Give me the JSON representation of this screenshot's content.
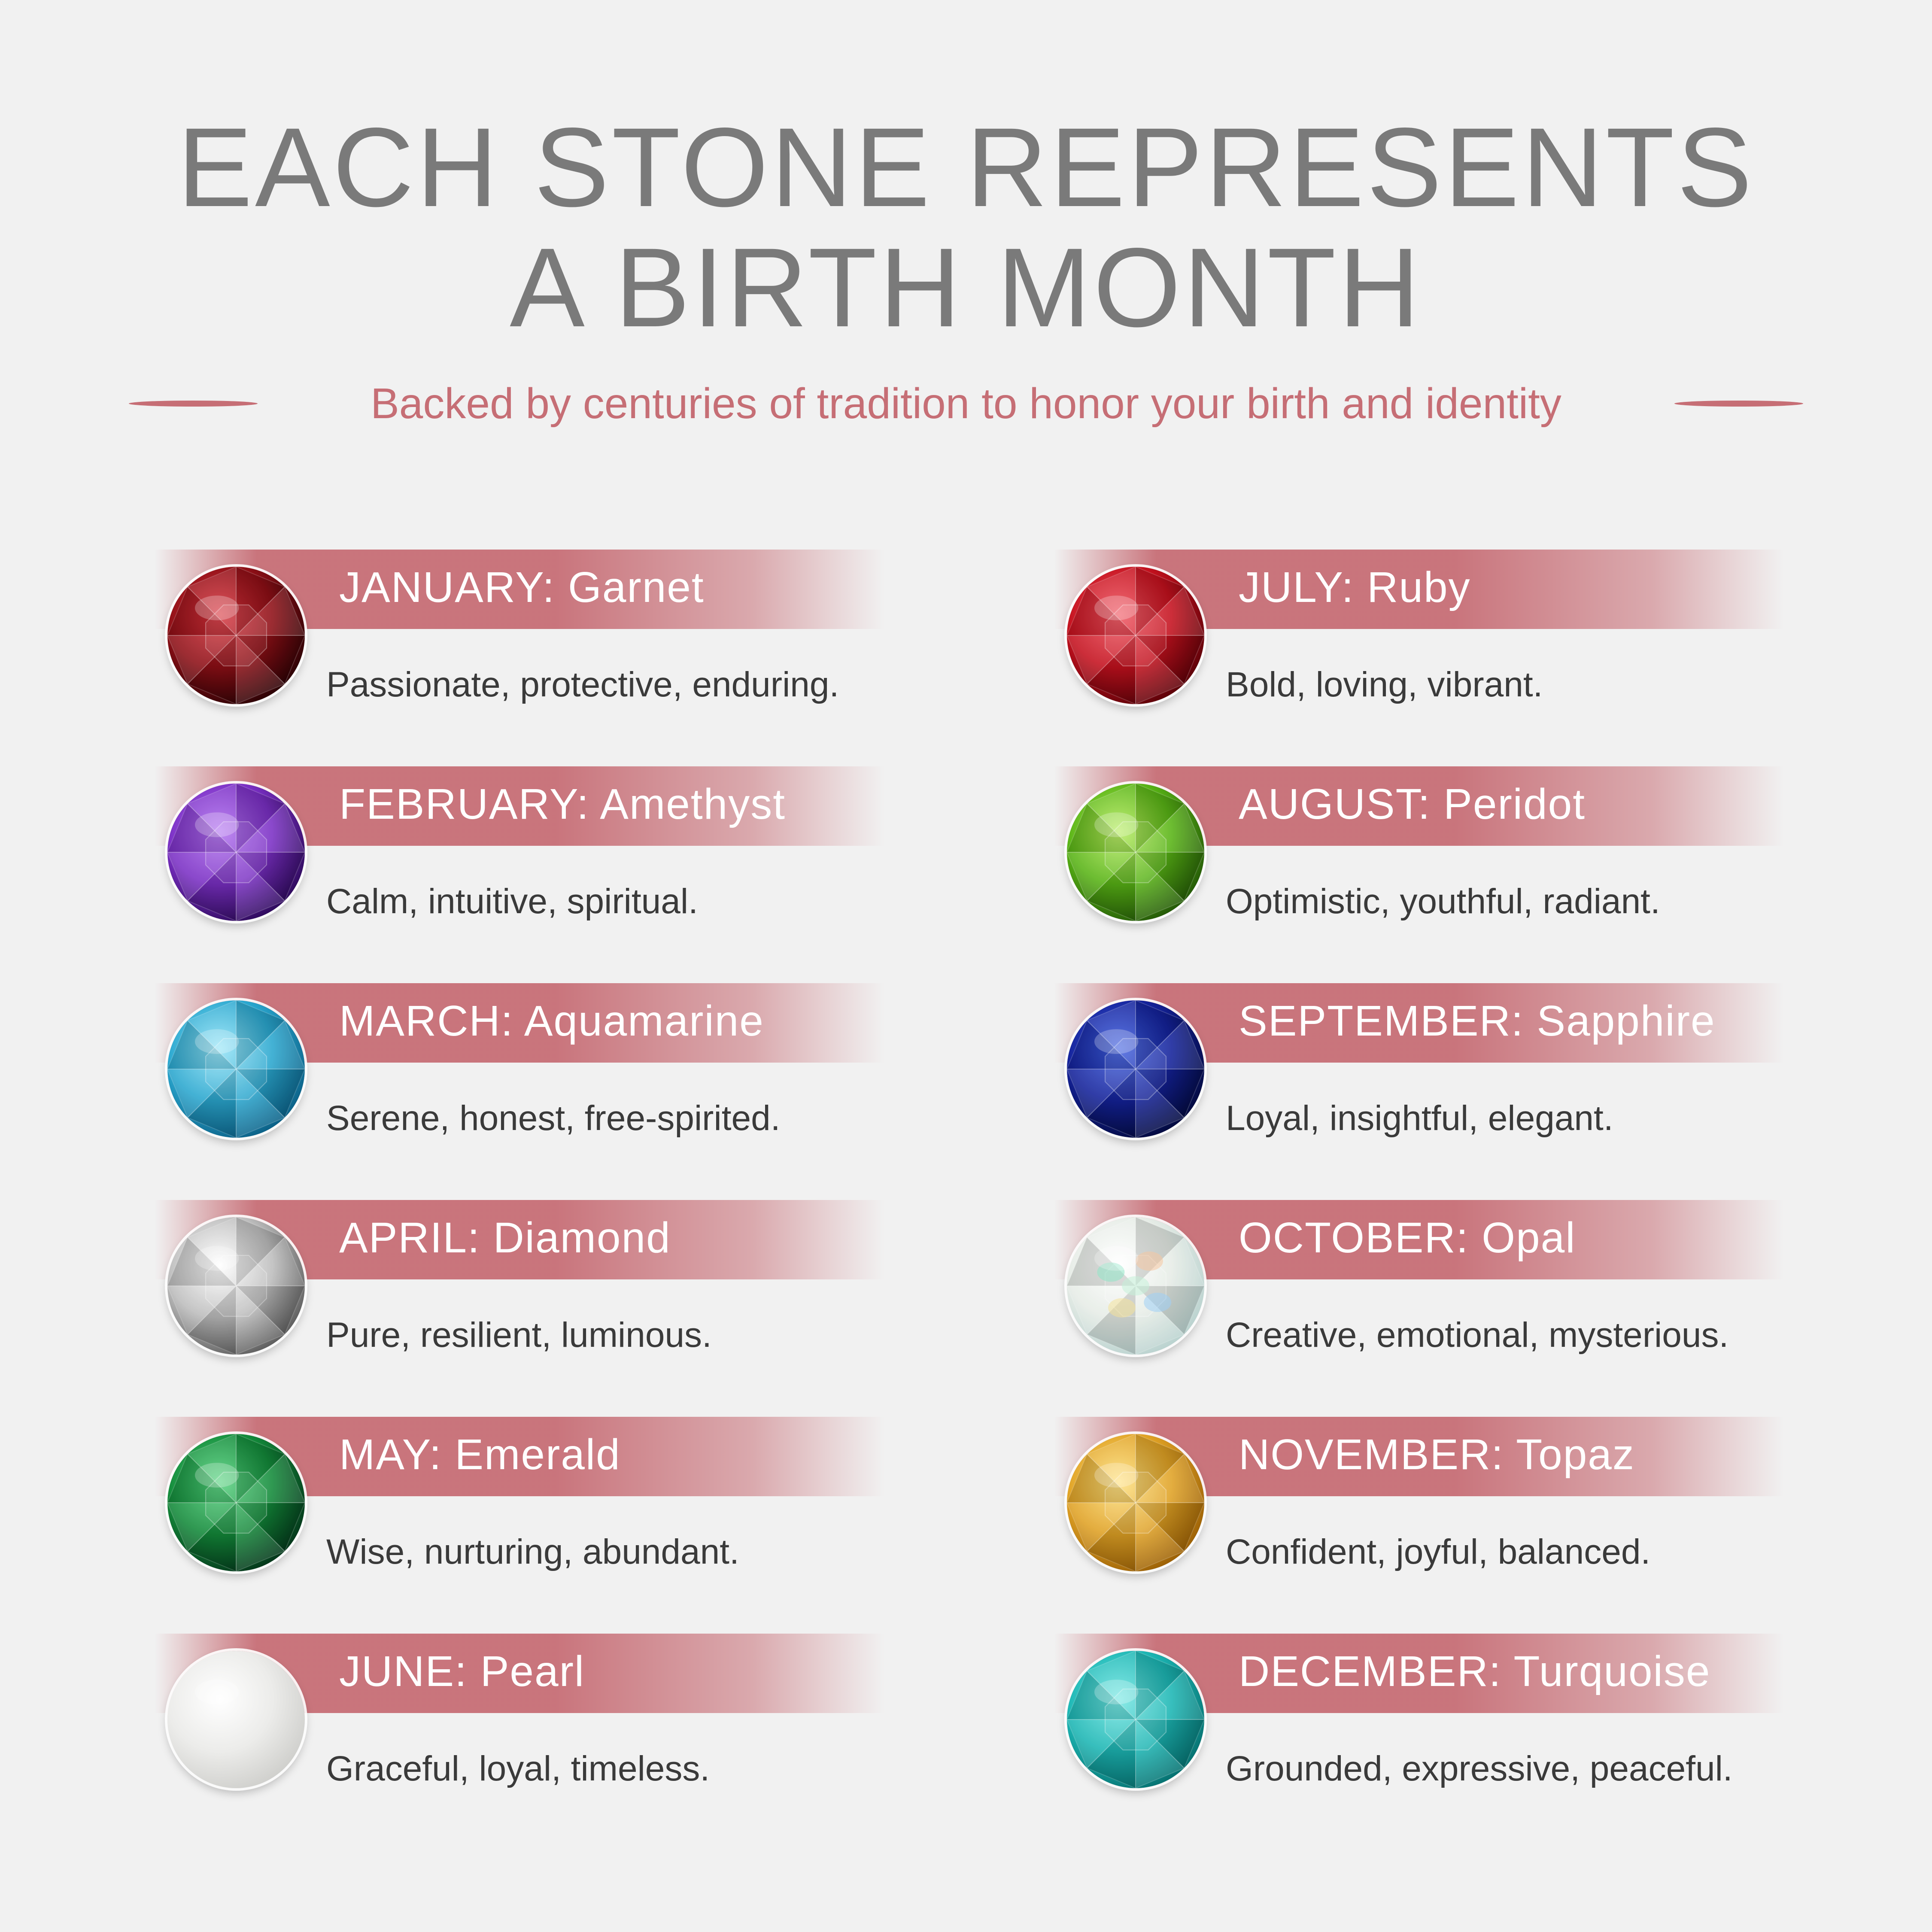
{
  "header": {
    "title_line1": "EACH STONE REPRESENTS",
    "title_line2": "A BIRTH MONTH",
    "subtitle": "Backed by centuries of tradition to honor your birth and identity"
  },
  "accent_color": "#c66e75",
  "months": [
    {
      "label": "JANUARY: Garnet",
      "desc": "Passionate, protective, enduring.",
      "icon": "garnet-gem-icon",
      "color": "#8e0f16",
      "dark": "#2a0205",
      "light": "#d8323c"
    },
    {
      "label": "FEBRUARY: Amethyst",
      "desc": "Calm, intuitive, spiritual.",
      "icon": "amethyst-gem-icon",
      "color": "#7a2fc4",
      "dark": "#2d0a5a",
      "light": "#b06ef0"
    },
    {
      "label": "MARCH: Aquamarine",
      "desc": "Serene, honest, free-spirited.",
      "icon": "aquamarine-gem-icon",
      "color": "#2aa7cf",
      "dark": "#0b5f85",
      "light": "#8fe3f7"
    },
    {
      "label": "APRIL: Diamond",
      "desc": "Pure, resilient, luminous.",
      "icon": "diamond-gem-icon",
      "color": "#bdbdbd",
      "dark": "#5c5c5c",
      "light": "#ffffff"
    },
    {
      "label": "MAY: Emerald",
      "desc": "Wise, nurturing, abundant.",
      "icon": "emerald-gem-icon",
      "color": "#138a3a",
      "dark": "#04351a",
      "light": "#4fd27a"
    },
    {
      "label": "JUNE: Pearl",
      "desc": "Graceful, loyal, timeless.",
      "icon": "pearl-gem-icon",
      "color": "#ececea",
      "dark": "#cfcfcc",
      "light": "#ffffff"
    },
    {
      "label": "JULY: Ruby",
      "desc": "Bold, loving, vibrant.",
      "icon": "ruby-gem-icon",
      "color": "#c4111e",
      "dark": "#5a0108",
      "light": "#f0505c"
    },
    {
      "label": "AUGUST: Peridot",
      "desc": "Optimistic, youthful, radiant.",
      "icon": "peridot-gem-icon",
      "color": "#58b315",
      "dark": "#235707",
      "light": "#b4ec5a"
    },
    {
      "label": "SEPTEMBER: Sapphire",
      "desc": "Loyal, insightful, elegant.",
      "icon": "sapphire-gem-icon",
      "color": "#14229a",
      "dark": "#030a3d",
      "light": "#3e5ee0"
    },
    {
      "label": "OCTOBER: Opal",
      "desc": "Creative, emotional, mysterious.",
      "icon": "opal-gem-icon",
      "color": "#e6ece6",
      "dark": "#b9d2cf",
      "light": "#ffffff"
    },
    {
      "label": "NOVEMBER: Topaz",
      "desc": "Confident, joyful, balanced.",
      "icon": "topaz-gem-icon",
      "color": "#e0a225",
      "dark": "#9a5f05",
      "light": "#ffe07a"
    },
    {
      "label": "DECEMBER: Turquoise",
      "desc": "Grounded, expressive, peaceful.",
      "icon": "turquoise-gem-icon",
      "color": "#1cb6b4",
      "dark": "#06706f",
      "light": "#6ee6e2"
    }
  ]
}
